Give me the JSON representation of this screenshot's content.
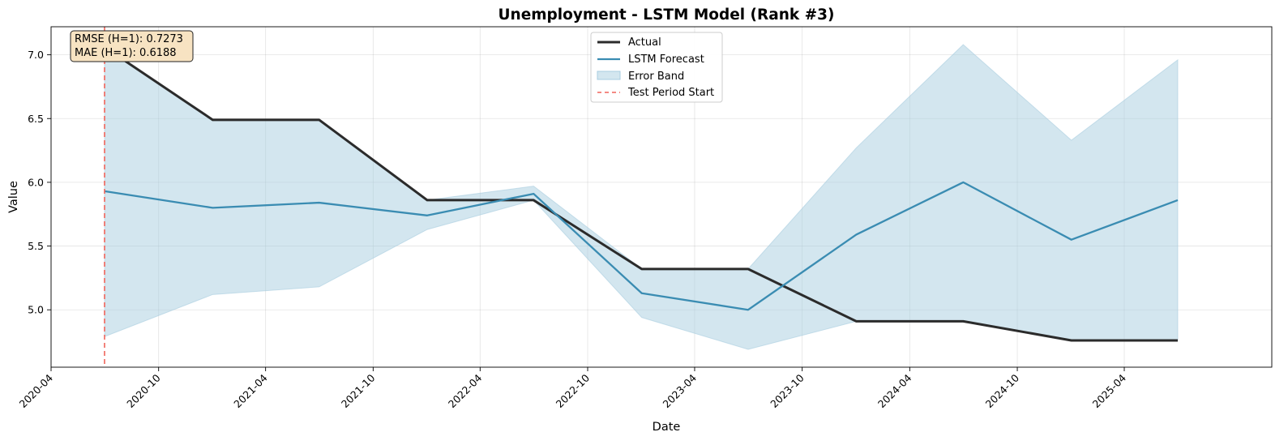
{
  "chart_data": {
    "type": "line",
    "title": "Unemployment - LSTM Model (Rank #3)",
    "xlabel": "Date",
    "ylabel": "Value",
    "x": [
      "2020-07-01",
      "2021-01-01",
      "2021-07-01",
      "2022-01-01",
      "2022-07-01",
      "2023-01-01",
      "2023-07-01",
      "2024-01-01",
      "2024-07-01",
      "2025-01-01",
      "2025-07-01"
    ],
    "series": [
      {
        "name": "Actual",
        "color": "#2b2b2b",
        "values": [
          7.06,
          6.49,
          6.49,
          5.86,
          5.86,
          5.32,
          5.32,
          4.91,
          4.91,
          4.76,
          4.76
        ]
      },
      {
        "name": "LSTM Forecast",
        "color": "#3a8cb2",
        "values": [
          5.93,
          5.8,
          5.84,
          5.74,
          5.91,
          5.13,
          5.0,
          5.59,
          6.0,
          5.55,
          5.86
        ]
      }
    ],
    "band": {
      "name": "Error Band",
      "color": "#a8cde0",
      "upper": [
        7.06,
        6.49,
        6.49,
        5.86,
        5.97,
        5.32,
        5.32,
        6.27,
        7.08,
        6.33,
        6.96
      ],
      "lower": [
        4.79,
        5.12,
        5.18,
        5.63,
        5.86,
        4.94,
        4.69,
        4.91,
        4.91,
        4.76,
        4.76
      ]
    },
    "vline": {
      "name": "Test Period Start",
      "x": "2020-07-01",
      "color": "#f0645a"
    },
    "x_ticks": [
      "2020-04",
      "2020-10",
      "2021-04",
      "2021-10",
      "2022-04",
      "2022-10",
      "2023-04",
      "2023-10",
      "2024-04",
      "2024-10",
      "2025-04"
    ],
    "y_ticks": [
      "5.0",
      "5.5",
      "6.0",
      "6.5",
      "7.0"
    ],
    "xlim": [
      "2020-04-01",
      "2025-12-08"
    ],
    "ylim": [
      4.55,
      7.22
    ],
    "grid": true,
    "legend_position": "top-center",
    "annotation": [
      "RMSE (H=1): 0.7273",
      "MAE (H=1): 0.6188"
    ]
  }
}
